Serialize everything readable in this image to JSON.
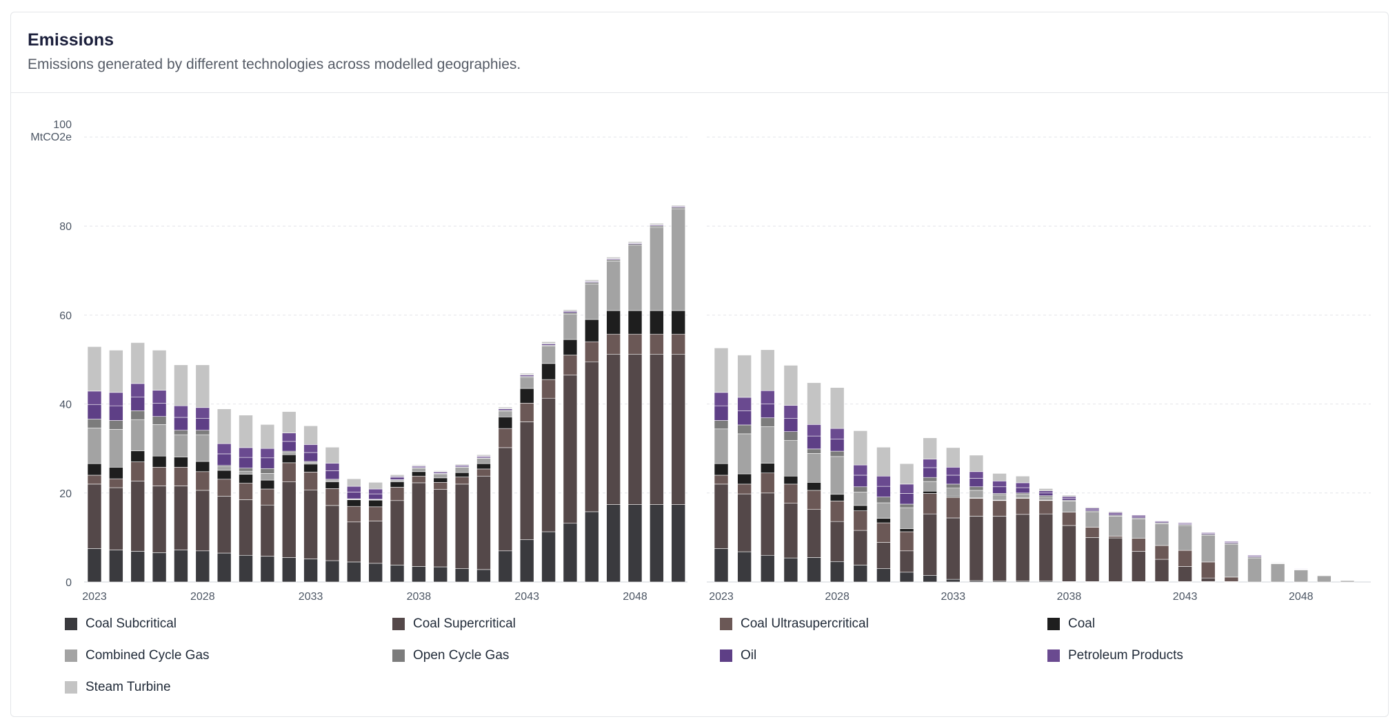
{
  "card": {
    "title": "Emissions",
    "subtitle": "Emissions generated by different technologies across modelled geographies."
  },
  "chart_data": {
    "type": "bar",
    "stacked": true,
    "y_unit": "MtCO2e",
    "y_top_label": "100",
    "ylim": [
      0,
      100
    ],
    "y_ticks": [
      0,
      20,
      40,
      60,
      80,
      100
    ],
    "x_tick_labels": [
      "2023",
      "2028",
      "2033",
      "2038",
      "2043",
      "2048"
    ],
    "grid": true,
    "technologies": [
      {
        "name": "Coal Subcritical",
        "color": "#3a3a3e"
      },
      {
        "name": "Coal Supercritical",
        "color": "#544849"
      },
      {
        "name": "Coal Ultrasupercritical",
        "color": "#6b5856"
      },
      {
        "name": "Coal",
        "color": "#1e1e1e"
      },
      {
        "name": "Combined Cycle Gas",
        "color": "#a3a3a3"
      },
      {
        "name": "Open Cycle Gas",
        "color": "#7c7c7c"
      },
      {
        "name": "Oil",
        "color": "#5e3f86"
      },
      {
        "name": "Petroleum Products",
        "color": "#6a4a90"
      },
      {
        "name": "Steam Turbine",
        "color": "#c4c4c4"
      }
    ],
    "panels": [
      {
        "years": [
          2023,
          2024,
          2025,
          2026,
          2027,
          2028,
          2029,
          2030,
          2031,
          2032,
          2033,
          2034,
          2035,
          2036,
          2037,
          2038,
          2039,
          2040,
          2041,
          2042,
          2043,
          2044,
          2045,
          2046,
          2047,
          2048,
          2049,
          2050
        ],
        "series": {
          "Coal Subcritical": [
            7.5,
            7.2,
            6.9,
            6.6,
            7.2,
            7.0,
            6.5,
            6.0,
            5.8,
            5.5,
            5.2,
            4.8,
            4.5,
            4.2,
            3.8,
            3.5,
            3.4,
            3.0,
            2.8,
            7.0,
            9.5,
            11.3,
            13.2,
            15.8,
            17.4,
            17.4,
            17.4,
            17.4
          ],
          "Coal Supercritical": [
            14.5,
            14.0,
            15.8,
            15.0,
            14.4,
            13.6,
            12.8,
            12.5,
            11.5,
            17.0,
            15.5,
            12.4,
            9.0,
            9.5,
            14.5,
            18.8,
            17.4,
            19.0,
            21.0,
            23.2,
            26.5,
            30.0,
            33.3,
            33.7,
            33.8,
            33.8,
            33.8,
            33.8
          ],
          "Coal Ultrasupercritical": [
            2.0,
            2.0,
            4.3,
            4.2,
            4.2,
            4.2,
            3.8,
            3.7,
            3.6,
            4.3,
            4.0,
            3.8,
            3.5,
            3.2,
            3.0,
            1.5,
            1.6,
            1.6,
            1.6,
            4.3,
            4.2,
            4.2,
            4.5,
            4.5,
            4.5,
            4.5,
            4.5,
            4.5
          ],
          "Coal": [
            2.6,
            2.6,
            2.5,
            2.5,
            2.3,
            2.3,
            2.0,
            2.0,
            2.0,
            1.8,
            1.8,
            1.5,
            1.5,
            1.5,
            1.2,
            1.0,
            1.0,
            1.0,
            1.2,
            2.6,
            3.3,
            3.6,
            3.5,
            5.0,
            5.3,
            5.3,
            5.3,
            5.3
          ],
          "Combined Cycle Gas": [
            8.0,
            8.5,
            7.0,
            7.1,
            5.0,
            6.0,
            0.8,
            0.7,
            1.5,
            0.5,
            0.4,
            0.4,
            0.1,
            0.1,
            0.4,
            0.8,
            0.9,
            1.2,
            1.2,
            1.3,
            2.5,
            3.9,
            5.7,
            8.0,
            11.1,
            14.6,
            18.7,
            22.9
          ],
          "Open Cycle Gas": [
            2.0,
            2.0,
            2.0,
            1.8,
            1.0,
            1.0,
            0.3,
            0.7,
            1.1,
            0.3,
            0.2,
            0.2,
            0.1,
            0.1,
            0.1,
            0.1,
            0.1,
            0.1,
            0.1,
            0.2,
            0.2,
            0.2,
            0.3,
            0.3,
            0.3,
            0.3,
            0.3,
            0.3
          ],
          "Oil": [
            3.3,
            3.3,
            3.1,
            3.0,
            2.9,
            2.7,
            2.6,
            2.4,
            2.4,
            2.2,
            2.0,
            1.9,
            1.5,
            1.2,
            0.5,
            0.3,
            0.3,
            0.3,
            0.3,
            0.3,
            0.3,
            0.3,
            0.3,
            0.2,
            0.2,
            0.2,
            0.2,
            0.2
          ],
          "Petroleum Products": [
            3.0,
            3.0,
            3.0,
            2.9,
            2.6,
            2.4,
            2.3,
            2.2,
            2.1,
            1.9,
            1.8,
            1.7,
            1.3,
            1.1,
            0.2,
            0.1,
            0.1,
            0.1,
            0.1,
            0.1,
            0.1,
            0.1,
            0.1,
            0.1,
            0.1,
            0.1,
            0.1,
            0.1
          ],
          "Steam Turbine": [
            10.0,
            9.5,
            9.2,
            9.0,
            9.2,
            9.6,
            7.8,
            7.3,
            5.4,
            4.8,
            4.2,
            3.6,
            1.7,
            1.5,
            0.4,
            0.2,
            0.2,
            0.2,
            0.3,
            0.3,
            0.3,
            0.4,
            0.3,
            0.3,
            0.3,
            0.3,
            0.3,
            0.2
          ]
        }
      },
      {
        "years": [
          2023,
          2024,
          2025,
          2026,
          2027,
          2028,
          2029,
          2030,
          2031,
          2032,
          2033,
          2034,
          2035,
          2036,
          2037,
          2038,
          2039,
          2040,
          2041,
          2042,
          2043,
          2044,
          2045,
          2046,
          2047,
          2048,
          2049,
          2050
        ],
        "series": {
          "Coal Subcritical": [
            7.5,
            6.8,
            6.0,
            5.4,
            5.5,
            4.6,
            3.8,
            3.0,
            2.2,
            1.5,
            0.6,
            0.3,
            0.2,
            0.2,
            0.2,
            0.1,
            0.1,
            0.1,
            0.1,
            0.1,
            0.1,
            0.1,
            0.1,
            0,
            0,
            0,
            0,
            0
          ],
          "Coal Supercritical": [
            14.5,
            13.0,
            14.0,
            12.3,
            10.8,
            9.0,
            7.8,
            5.9,
            4.8,
            13.8,
            13.8,
            14.5,
            14.6,
            15.0,
            15.1,
            12.6,
            9.9,
            9.8,
            6.8,
            5.0,
            3.4,
            0.8,
            0,
            0,
            0,
            0,
            0,
            0
          ],
          "Coal Ultrasupercritical": [
            2.0,
            2.2,
            4.5,
            4.3,
            4.3,
            4.6,
            4.4,
            4.4,
            4.3,
            4.6,
            4.6,
            4.0,
            3.5,
            3.6,
            3.0,
            3.0,
            2.3,
            0.4,
            2.9,
            3.1,
            3.6,
            3.6,
            1.0,
            0,
            0,
            0,
            0,
            0
          ],
          "Coal": [
            2.6,
            2.3,
            2.2,
            1.8,
            1.8,
            1.5,
            1.2,
            1.0,
            0.7,
            0.5,
            0.2,
            0.1,
            0.1,
            0.1,
            0.1,
            0,
            0,
            0,
            0,
            0,
            0,
            0,
            0,
            0,
            0,
            0,
            0,
            0
          ],
          "Combined Cycle Gas": [
            7.8,
            9.0,
            8.2,
            8.0,
            6.5,
            8.5,
            3.0,
            3.5,
            4.7,
            2.2,
            1.9,
            1.7,
            1.2,
            0.8,
            0.7,
            2.5,
            3.5,
            4.5,
            4.4,
            4.9,
            5.6,
            6.0,
            7.4,
            5.4,
            4.1,
            2.7,
            1.4,
            0.3
          ],
          "Open Cycle Gas": [
            1.9,
            2.0,
            2.0,
            2.0,
            1.0,
            1.2,
            1.2,
            1.3,
            0.8,
            0.9,
            0.9,
            0.8,
            0.3,
            0.3,
            0.3,
            0.2,
            0.2,
            0.2,
            0.2,
            0.2,
            0.2,
            0.2,
            0.2,
            0.2,
            0.1,
            0.1,
            0.1,
            0
          ],
          "Oil": [
            3.3,
            3.2,
            3.1,
            3.0,
            2.9,
            2.7,
            2.6,
            2.4,
            2.4,
            2.2,
            2.0,
            1.9,
            1.5,
            1.2,
            0.6,
            0.4,
            0.3,
            0.3,
            0.3,
            0.2,
            0.2,
            0.2,
            0.2,
            0.2,
            0.1,
            0.1,
            0,
            0
          ],
          "Petroleum Products": [
            3.0,
            3.0,
            3.0,
            2.9,
            2.6,
            2.4,
            2.3,
            2.3,
            2.1,
            1.9,
            1.8,
            1.5,
            1.3,
            1.1,
            0.5,
            0.4,
            0.3,
            0.3,
            0.3,
            0.2,
            0.2,
            0.2,
            0.2,
            0.2,
            0.1,
            0.1,
            0,
            0
          ],
          "Steam Turbine": [
            10.0,
            9.5,
            9.2,
            9.0,
            9.4,
            9.2,
            7.7,
            6.5,
            4.6,
            4.8,
            4.4,
            3.7,
            1.7,
            1.5,
            0.5,
            0.3,
            0.2,
            0.2,
            0.1,
            0.1,
            0.1,
            0.1,
            0.1,
            0.1,
            0.1,
            0,
            0,
            0
          ]
        }
      }
    ]
  }
}
